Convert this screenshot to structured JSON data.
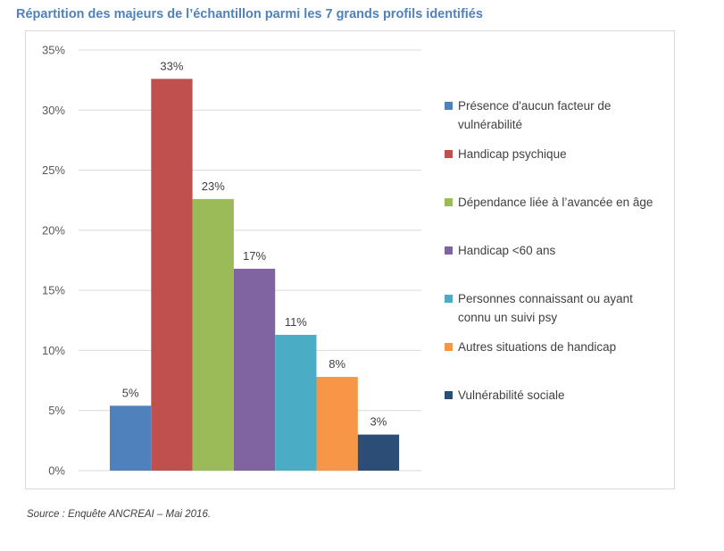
{
  "title": "Répartition des majeurs de l’échantillon parmi les 7 grands profils identifiés",
  "source": "Source : Enquête ANCREAI – Mai 2016.",
  "chart_data": {
    "type": "bar",
    "title": "",
    "xlabel": "",
    "ylabel": "",
    "ylim": [
      0,
      35
    ],
    "yticks": [
      0,
      5,
      10,
      15,
      20,
      25,
      30,
      35
    ],
    "ytick_labels": [
      "0%",
      "5%",
      "10%",
      "15%",
      "20%",
      "25%",
      "30%",
      "35%"
    ],
    "grid": true,
    "legend_position": "right",
    "series": [
      {
        "name": "Présence d'aucun facteur de vulnérabilité",
        "value": 5.4,
        "label": "5%",
        "color": "#4f81bd"
      },
      {
        "name": "Handicap psychique",
        "value": 32.6,
        "label": "33%",
        "color": "#c0504d"
      },
      {
        "name": "Dépendance liée à l’avancée en âge",
        "value": 22.6,
        "label": "23%",
        "color": "#9bbb59"
      },
      {
        "name": "Handicap <60 ans",
        "value": 16.8,
        "label": "17%",
        "color": "#8064a2"
      },
      {
        "name": "Personnes connaissant ou ayant connu un suivi psy",
        "value": 11.3,
        "label": "11%",
        "color": "#4bacc6"
      },
      {
        "name": "Autres situations de handicap",
        "value": 7.8,
        "label": "8%",
        "color": "#f79646"
      },
      {
        "name": "Vulnérabilité sociale",
        "value": 3.0,
        "label": "3%",
        "color": "#2c4d75"
      }
    ]
  }
}
